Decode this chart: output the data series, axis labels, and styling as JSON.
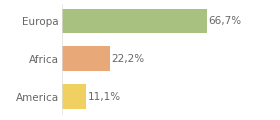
{
  "categories": [
    "America",
    "Africa",
    "Europa"
  ],
  "values": [
    11.1,
    22.2,
    66.7
  ],
  "colors": [
    "#f0d060",
    "#e8a878",
    "#a8c080"
  ],
  "labels": [
    "11,1%",
    "22,2%",
    "66,7%"
  ],
  "background_color": "#ffffff",
  "bar_height": 0.65,
  "xlim": [
    0,
    85
  ],
  "label_fontsize": 7.5,
  "tick_fontsize": 7.5,
  "grid_color": "#dddddd",
  "text_color": "#666666"
}
